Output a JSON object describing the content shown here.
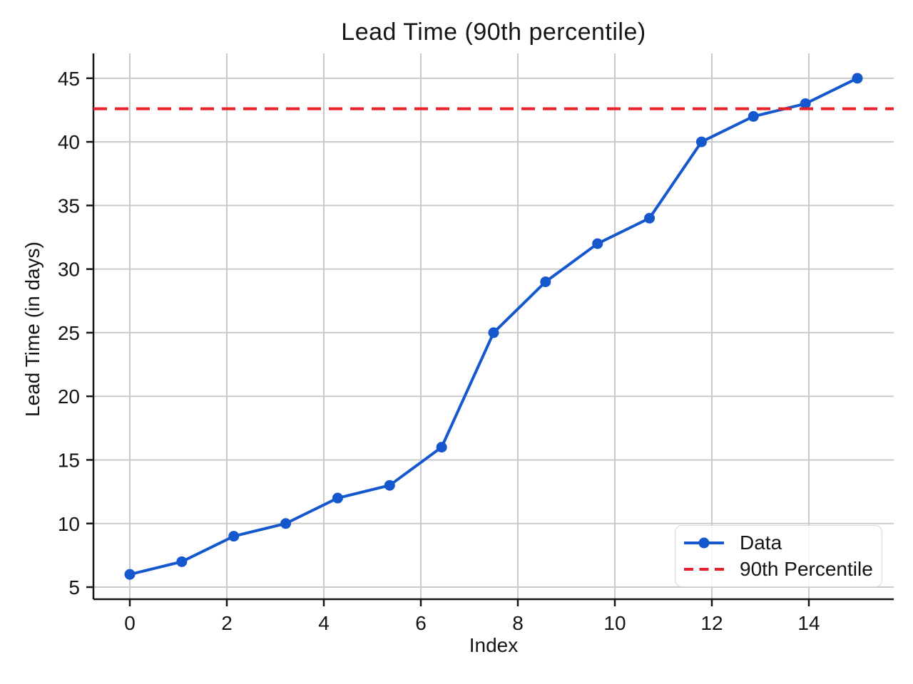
{
  "chart_data": {
    "type": "line",
    "title": "Lead Time (90th percentile)",
    "xlabel": "Index",
    "ylabel": "Lead Time (in days)",
    "x": [
      0,
      1.071,
      2.143,
      3.214,
      4.286,
      5.357,
      6.429,
      7.5,
      8.571,
      9.643,
      10.714,
      11.786,
      12.857,
      13.929,
      15
    ],
    "series": [
      {
        "name": "Data",
        "type": "line+markers",
        "color": "#1557cd",
        "values": [
          6,
          7,
          9,
          10,
          12,
          13,
          16,
          25,
          29,
          32,
          34,
          40,
          42,
          43,
          45
        ]
      },
      {
        "name": "90th Percentile",
        "type": "hline",
        "style": "dashed",
        "color": "#e8212a",
        "value": 42.6
      }
    ],
    "xticks": [
      0,
      2,
      4,
      6,
      8,
      10,
      12,
      14
    ],
    "yticks": [
      5,
      10,
      15,
      20,
      25,
      30,
      35,
      40,
      45
    ],
    "xlim": [
      -0.75,
      15.75
    ],
    "ylim": [
      4.05,
      46.95
    ],
    "grid": true,
    "legend_position": "lower right",
    "colors": {
      "grid": "#c9c9c9",
      "axis": "#151515",
      "text": "#151515",
      "background": "#ffffff"
    }
  }
}
